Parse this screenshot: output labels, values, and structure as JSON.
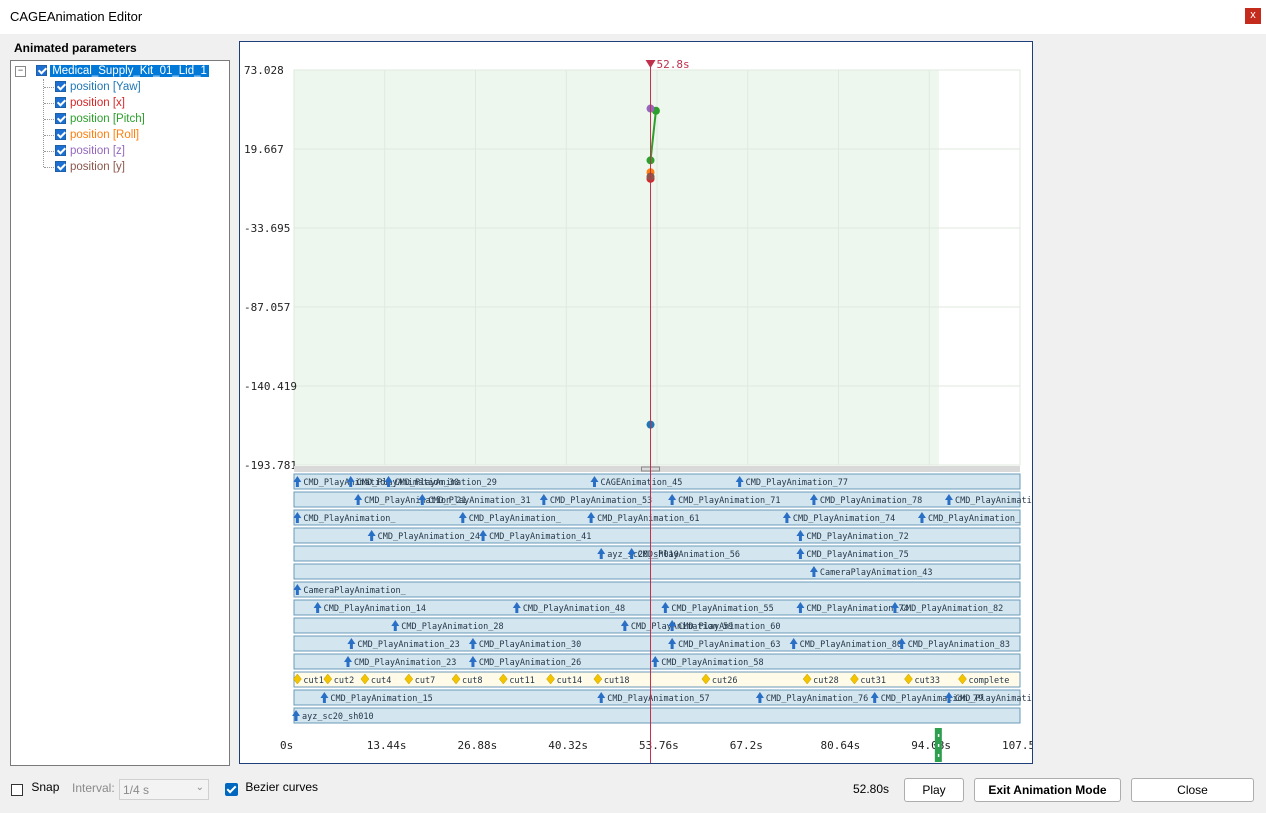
{
  "window": {
    "title": "CAGEAnimation Editor",
    "close_glyph": "x"
  },
  "params": {
    "header": "Animated parameters",
    "root": "Medical_Supply_Kit_01_Lid_1",
    "items": [
      {
        "label": "position [Yaw]",
        "color": "#1f77b4"
      },
      {
        "label": "position [x]",
        "color": "#d62728"
      },
      {
        "label": "position [Pitch]",
        "color": "#2ca02c"
      },
      {
        "label": "position [Roll]",
        "color": "#ff7f0e"
      },
      {
        "label": "position [z]",
        "color": "#9467bd"
      },
      {
        "label": "position [y]",
        "color": "#8c564b"
      }
    ]
  },
  "chart_data": {
    "type": "scatter",
    "ylim": [
      -193.781,
      73.028
    ],
    "y_ticks": [
      "73.028",
      "19.667",
      "-33.695",
      "-87.057",
      "-140.419",
      "-193.781"
    ],
    "x_ticks": [
      "0s",
      "13.44s",
      "26.88s",
      "40.32s",
      "53.76s",
      "67.2s",
      "80.64s",
      "94.08s",
      "107.5"
    ],
    "xlim": [
      0,
      107.52
    ],
    "playhead_label": "52.8s",
    "playhead": 52.8,
    "series": [
      {
        "name": "position [Yaw]",
        "color": "#1f77b4",
        "points": [
          [
            52.8,
            -166.5
          ]
        ]
      },
      {
        "name": "position [x]",
        "color": "#d62728",
        "points": [
          [
            52.8,
            -0.5
          ]
        ]
      },
      {
        "name": "position [Pitch]",
        "color": "#2ca02c",
        "points": [
          [
            52.8,
            12.0
          ],
          [
            53.6,
            45.5
          ]
        ]
      },
      {
        "name": "position [Roll]",
        "color": "#ff7f0e",
        "points": [
          [
            52.8,
            4.0
          ]
        ]
      },
      {
        "name": "position [z]",
        "color": "#9467bd",
        "points": [
          [
            52.8,
            47.0
          ]
        ]
      },
      {
        "name": "position [y]",
        "color": "#8c564b",
        "points": [
          [
            52.8,
            1.0
          ]
        ]
      }
    ]
  },
  "tracks": [
    {
      "events": [
        [
          0.5,
          "CMD_PlayAnimation_"
        ],
        [
          8.4,
          "CMD_PlayAnimation_30"
        ],
        [
          14.0,
          "CMD_PlayAnimation_29"
        ],
        [
          44.5,
          "CAGEAnimation_45"
        ],
        [
          66.0,
          "CMD_PlayAnimation_77"
        ]
      ]
    },
    {
      "events": [
        [
          9.5,
          "CMD_PlayAnimation_21"
        ],
        [
          19.0,
          "CMD_PlayAnimation_31"
        ],
        [
          37.0,
          "CMD_PlayAnimation_53"
        ],
        [
          56.0,
          "CMD_PlayAnimation_71"
        ],
        [
          77.0,
          "CMD_PlayAnimation_78"
        ],
        [
          97.0,
          "CMD_PlayAnimation_"
        ]
      ]
    },
    {
      "events": [
        [
          0.5,
          "CMD_PlayAnimation_"
        ],
        [
          25.0,
          "CMD_PlayAnimation_"
        ],
        [
          44.0,
          "CMD_PlayAnimation_61"
        ],
        [
          73.0,
          "CMD_PlayAnimation_74"
        ],
        [
          93.0,
          "CMD_PlayAnimation_"
        ]
      ]
    },
    {
      "events": [
        [
          11.5,
          "CMD_PlayAnimation_24"
        ],
        [
          28.0,
          "CMD_PlayAnimation_41"
        ],
        [
          75.0,
          "CMD_PlayAnimation_72"
        ]
      ]
    },
    {
      "events": [
        [
          45.5,
          "ayz_sc20_sh010"
        ],
        [
          50.0,
          "CMD_PlayAnimation_56"
        ],
        [
          75.0,
          "CMD_PlayAnimation_75"
        ]
      ]
    },
    {
      "events": [
        [
          77.0,
          "CameraPlayAnimation_43"
        ]
      ]
    },
    {
      "events": [
        [
          0.5,
          "CameraPlayAnimation_"
        ]
      ]
    },
    {
      "events": [
        [
          3.5,
          "CMD_PlayAnimation_14"
        ],
        [
          33.0,
          "CMD_PlayAnimation_48"
        ],
        [
          55.0,
          "CMD_PlayAnimation_55"
        ],
        [
          75.0,
          "CMD_PlayAnimation_74"
        ],
        [
          89.0,
          "CMD_PlayAnimation_82"
        ]
      ]
    },
    {
      "events": [
        [
          15.0,
          "CMD_PlayAnimation_28"
        ],
        [
          49.0,
          "CMD_PlayAnimation_59"
        ],
        [
          56.0,
          "CMD_PlayAnimation_60"
        ]
      ]
    },
    {
      "events": [
        [
          8.5,
          "CMD_PlayAnimation_23"
        ],
        [
          26.5,
          "CMD_PlayAnimation_30"
        ],
        [
          56.0,
          "CMD_PlayAnimation_63"
        ],
        [
          74.0,
          "CMD_PlayAnimation_80"
        ],
        [
          90.0,
          "CMD_PlayAnimation_83"
        ]
      ]
    },
    {
      "events": [
        [
          8.0,
          "CMD_PlayAnimation_23"
        ],
        [
          26.5,
          "CMD_PlayAnimation_26"
        ],
        [
          53.5,
          "CMD_PlayAnimation_58"
        ]
      ]
    },
    {
      "cues": true,
      "events": [
        [
          0.5,
          "cut1"
        ],
        [
          5.0,
          "cut2"
        ],
        [
          10.5,
          "cut4"
        ],
        [
          17.0,
          "cut7"
        ],
        [
          24.0,
          "cut8"
        ],
        [
          31.0,
          "cut11"
        ],
        [
          38.0,
          "cut14"
        ],
        [
          45.0,
          "cut18"
        ],
        [
          61.0,
          "cut26"
        ],
        [
          76.0,
          "cut28"
        ],
        [
          83.0,
          "cut31"
        ],
        [
          91.0,
          "cut33"
        ],
        [
          99.0,
          "complete"
        ]
      ]
    },
    {
      "events": [
        [
          4.5,
          "CMD_PlayAnimation_15"
        ],
        [
          45.5,
          "CMD_PlayAnimation_57"
        ],
        [
          69.0,
          "CMD_PlayAnimation_76"
        ],
        [
          86.0,
          "CMD_PlayAnimation_79"
        ],
        [
          97.0,
          "CMD_PlayAnimation_"
        ]
      ]
    },
    {
      "events": [
        [
          0.3,
          "ayz_sc20_sh010"
        ]
      ]
    }
  ],
  "footer": {
    "snap_label": "Snap",
    "interval_label": "Interval:",
    "interval_value": "1/4 s",
    "bezier_label": "Bezier curves",
    "time": "52.80s",
    "play_label": "Play",
    "exit_label": "Exit Animation Mode",
    "close_label": "Close"
  }
}
